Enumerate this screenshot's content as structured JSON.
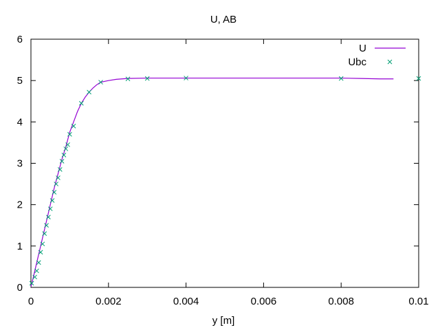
{
  "chart_data": {
    "type": "line",
    "title": "U, AB",
    "xlabel": "y [m]",
    "ylabel": "",
    "xlim": [
      0,
      0.01
    ],
    "ylim": [
      0,
      6
    ],
    "x_ticks": [
      0,
      0.002,
      0.004,
      0.006,
      0.008,
      0.01
    ],
    "x_tick_labels": [
      "0",
      "0.002",
      "0.004",
      "0.006",
      "0.008",
      "0.01"
    ],
    "y_ticks": [
      0,
      1,
      2,
      3,
      4,
      5,
      6
    ],
    "y_tick_labels": [
      "0",
      "1",
      "2",
      "3",
      "4",
      "5",
      "6"
    ],
    "grid": false,
    "legend_position": "top-right",
    "series": [
      {
        "name": "U",
        "style": "line",
        "color": "#9400d3",
        "x": [
          0,
          5e-05,
          0.0001,
          0.00015,
          0.0002,
          0.00025,
          0.0003,
          0.0004,
          0.0005,
          0.0006,
          0.0007,
          0.0008,
          0.0009,
          0.001,
          0.0011,
          0.0012,
          0.0013,
          0.0014,
          0.0015,
          0.0016,
          0.0017,
          0.0018,
          0.002,
          0.0022,
          0.0025,
          0.003,
          0.004,
          0.005,
          0.006,
          0.007,
          0.008,
          0.0085,
          0.009,
          0.00935
        ],
        "y": [
          0.02,
          0.2,
          0.4,
          0.6,
          0.8,
          1.0,
          1.2,
          1.6,
          2.0,
          2.4,
          2.75,
          3.1,
          3.4,
          3.75,
          4.0,
          4.25,
          4.45,
          4.6,
          4.72,
          4.82,
          4.9,
          4.96,
          5.0,
          5.03,
          5.05,
          5.06,
          5.06,
          5.06,
          5.06,
          5.06,
          5.06,
          5.05,
          5.04,
          5.04
        ]
      },
      {
        "name": "Ubc",
        "style": "points",
        "marker": "x",
        "color": "#009e73",
        "x": [
          2e-05,
          0.0001,
          0.00015,
          0.0002,
          0.00025,
          0.0003,
          0.00035,
          0.0004,
          0.00045,
          0.0005,
          0.00055,
          0.0006,
          0.00065,
          0.0007,
          0.00075,
          0.0008,
          0.00085,
          0.0009,
          0.00095,
          0.001,
          0.0011,
          0.0013,
          0.0015,
          0.0018,
          0.0025,
          0.003,
          0.004,
          0.008,
          0.01
        ],
        "y": [
          0.1,
          0.25,
          0.4,
          0.6,
          0.85,
          1.05,
          1.3,
          1.5,
          1.7,
          1.9,
          2.1,
          2.3,
          2.5,
          2.65,
          2.85,
          3.05,
          3.2,
          3.35,
          3.45,
          3.7,
          3.9,
          4.45,
          4.72,
          4.96,
          5.04,
          5.05,
          5.06,
          5.05,
          5.05
        ]
      }
    ]
  }
}
